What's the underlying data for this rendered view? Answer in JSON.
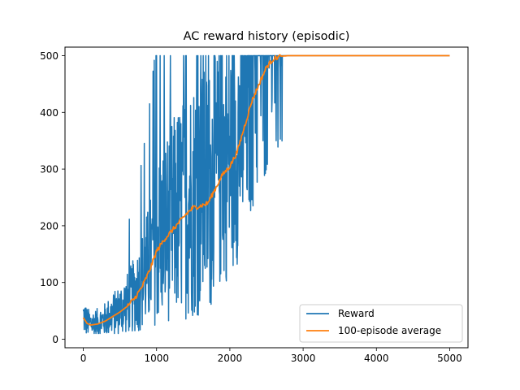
{
  "chart_data": {
    "type": "line",
    "title": "AC reward history (episodic)",
    "xlabel": "",
    "ylabel": "",
    "xlim": [
      -250,
      5250
    ],
    "ylim": [
      -15,
      515
    ],
    "xticks": [
      0,
      1000,
      2000,
      3000,
      4000,
      5000
    ],
    "yticks": [
      0,
      100,
      200,
      300,
      400,
      500
    ],
    "grid": false,
    "legend_position": "lower right",
    "series": [
      {
        "name": "Reward",
        "color": "#1f77b4",
        "style": "noisy-raw",
        "x_range": [
          0,
          2750
        ],
        "max_value": 500,
        "min_value": 10
      },
      {
        "name": "100-episode average",
        "color": "#ff7f0e",
        "x": [
          0,
          50,
          100,
          200,
          300,
          400,
          500,
          600,
          700,
          800,
          900,
          1000,
          1100,
          1200,
          1300,
          1400,
          1500,
          1600,
          1700,
          1800,
          1900,
          2000,
          2100,
          2200,
          2300,
          2400,
          2500,
          2600,
          2700,
          2800,
          3000,
          4000,
          5000
        ],
        "y": [
          38,
          28,
          25,
          27,
          32,
          40,
          48,
          58,
          72,
          92,
          120,
          155,
          175,
          190,
          205,
          220,
          232,
          235,
          240,
          265,
          290,
          305,
          330,
          375,
          420,
          450,
          480,
          495,
          499,
          500,
          500,
          500,
          500
        ]
      }
    ]
  }
}
